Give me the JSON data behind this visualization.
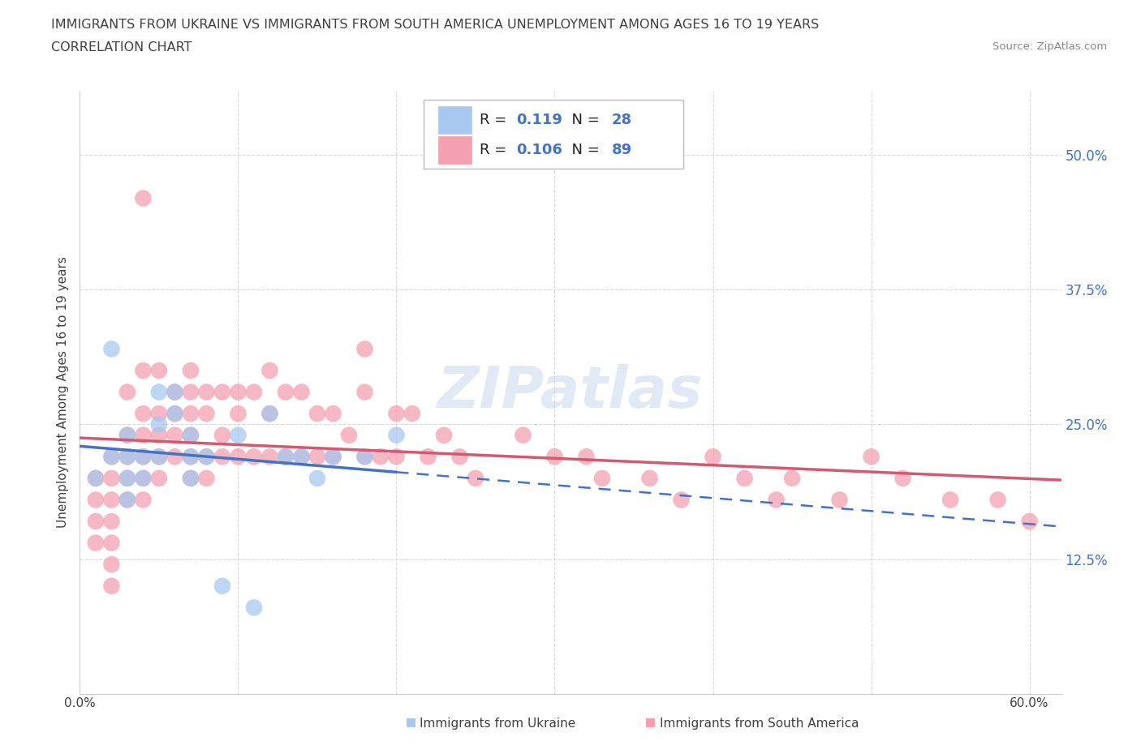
{
  "title_line1": "IMMIGRANTS FROM UKRAINE VS IMMIGRANTS FROM SOUTH AMERICA UNEMPLOYMENT AMONG AGES 16 TO 19 YEARS",
  "title_line2": "CORRELATION CHART",
  "source": "Source: ZipAtlas.com",
  "ylabel": "Unemployment Among Ages 16 to 19 years",
  "xlim": [
    0.0,
    0.62
  ],
  "ylim": [
    0.0,
    0.56
  ],
  "ytick_positions": [
    0.125,
    0.25,
    0.375,
    0.5
  ],
  "ytick_labels": [
    "12.5%",
    "25.0%",
    "37.5%",
    "50.0%"
  ],
  "watermark": "ZIPatlas",
  "legend_ukraine_R": "0.119",
  "legend_ukraine_N": "28",
  "legend_sa_R": "0.106",
  "legend_sa_N": "89",
  "ukraine_color": "#a8c8f0",
  "ukraine_line_color": "#4472c4",
  "sa_color": "#f4a0b0",
  "sa_line_color": "#d45870",
  "background_color": "#ffffff",
  "grid_color": "#d8d8d8",
  "title_color": "#404040",
  "ukraine_x": [
    0.01,
    0.02,
    0.02,
    0.03,
    0.03,
    0.03,
    0.03,
    0.04,
    0.04,
    0.05,
    0.05,
    0.05,
    0.06,
    0.06,
    0.07,
    0.07,
    0.07,
    0.08,
    0.1,
    0.12,
    0.13,
    0.14,
    0.15,
    0.16,
    0.18,
    0.2,
    0.09,
    0.11
  ],
  "ukraine_y": [
    0.2,
    0.32,
    0.22,
    0.24,
    0.22,
    0.2,
    0.18,
    0.22,
    0.2,
    0.28,
    0.25,
    0.22,
    0.28,
    0.26,
    0.24,
    0.22,
    0.2,
    0.22,
    0.24,
    0.26,
    0.22,
    0.22,
    0.2,
    0.22,
    0.22,
    0.24,
    0.1,
    0.08
  ],
  "sa_x": [
    0.01,
    0.01,
    0.01,
    0.01,
    0.02,
    0.02,
    0.02,
    0.02,
    0.02,
    0.02,
    0.02,
    0.03,
    0.03,
    0.03,
    0.03,
    0.03,
    0.04,
    0.04,
    0.04,
    0.04,
    0.04,
    0.04,
    0.04,
    0.05,
    0.05,
    0.05,
    0.05,
    0.05,
    0.06,
    0.06,
    0.06,
    0.06,
    0.07,
    0.07,
    0.07,
    0.07,
    0.07,
    0.07,
    0.08,
    0.08,
    0.08,
    0.08,
    0.09,
    0.09,
    0.09,
    0.1,
    0.1,
    0.1,
    0.11,
    0.11,
    0.12,
    0.12,
    0.12,
    0.13,
    0.13,
    0.14,
    0.14,
    0.15,
    0.15,
    0.16,
    0.16,
    0.17,
    0.18,
    0.18,
    0.18,
    0.19,
    0.2,
    0.2,
    0.21,
    0.22,
    0.23,
    0.24,
    0.25,
    0.28,
    0.3,
    0.32,
    0.33,
    0.36,
    0.38,
    0.4,
    0.42,
    0.44,
    0.45,
    0.48,
    0.5,
    0.52,
    0.55,
    0.58,
    0.6
  ],
  "sa_y": [
    0.2,
    0.18,
    0.16,
    0.14,
    0.22,
    0.2,
    0.18,
    0.16,
    0.14,
    0.12,
    0.1,
    0.28,
    0.24,
    0.22,
    0.2,
    0.18,
    0.46,
    0.3,
    0.26,
    0.24,
    0.22,
    0.2,
    0.18,
    0.3,
    0.26,
    0.24,
    0.22,
    0.2,
    0.28,
    0.26,
    0.24,
    0.22,
    0.3,
    0.28,
    0.26,
    0.24,
    0.22,
    0.2,
    0.28,
    0.26,
    0.22,
    0.2,
    0.28,
    0.24,
    0.22,
    0.28,
    0.26,
    0.22,
    0.28,
    0.22,
    0.3,
    0.26,
    0.22,
    0.28,
    0.22,
    0.28,
    0.22,
    0.26,
    0.22,
    0.26,
    0.22,
    0.24,
    0.32,
    0.28,
    0.22,
    0.22,
    0.26,
    0.22,
    0.26,
    0.22,
    0.24,
    0.22,
    0.2,
    0.24,
    0.22,
    0.22,
    0.2,
    0.2,
    0.18,
    0.22,
    0.2,
    0.18,
    0.2,
    0.18,
    0.22,
    0.2,
    0.18,
    0.18,
    0.16
  ]
}
